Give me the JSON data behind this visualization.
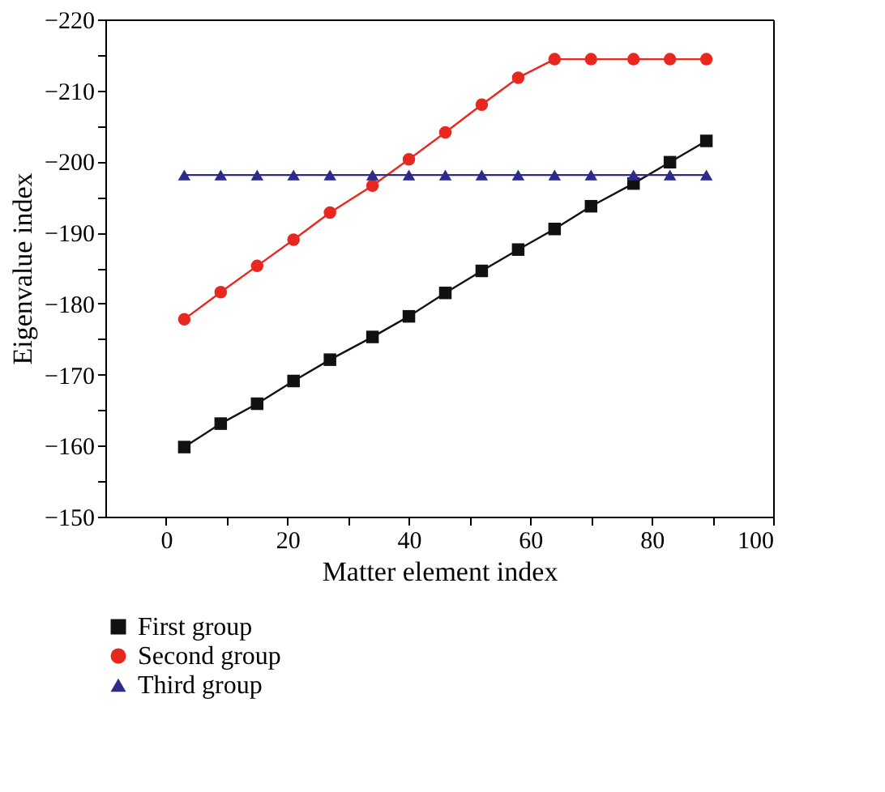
{
  "chart_data": {
    "type": "line",
    "xlabel": "Matter element index",
    "ylabel": "Eigenvalue index",
    "x": [
      3,
      9,
      15,
      21,
      27,
      34,
      40,
      46,
      52,
      58,
      64,
      70,
      77,
      83,
      89
    ],
    "series": [
      {
        "name": "First group",
        "color": "#111111",
        "marker": "square",
        "values": [
          -159.8,
          -163.1,
          -165.9,
          -169.1,
          -172.1,
          -175.3,
          -178.2,
          -181.5,
          -184.6,
          -187.6,
          -190.5,
          -193.7,
          -196.9,
          -199.9,
          -202.9
        ]
      },
      {
        "name": "Second group",
        "color": "#e8281e",
        "marker": "circle",
        "values": [
          -177.8,
          -181.6,
          -185.3,
          -189,
          -192.8,
          -196.6,
          -200.3,
          -204.1,
          -208,
          -211.8,
          -214.4,
          -214.4,
          -214.4,
          -214.4,
          -214.4
        ]
      },
      {
        "name": "Third group",
        "color": "#2e2a8c",
        "marker": "triangle",
        "values": [
          -198.1,
          -198.1,
          -198.1,
          -198.1,
          -198.1,
          -198.1,
          -198.1,
          -198.1,
          -198.1,
          -198.1,
          -198.1,
          -198.1,
          -198.1,
          -198.1,
          -198.1
        ]
      }
    ],
    "xlim": [
      -10,
      100
    ],
    "xticks": [
      0,
      {
        "value": 10,
        "label": null
      },
      20,
      {
        "value": 30,
        "label": null
      },
      40,
      {
        "value": 50,
        "label": null
      },
      60,
      {
        "value": 70,
        "label": null
      },
      80,
      {
        "value": 90,
        "label": null
      },
      100
    ],
    "ylim": [
      -150,
      -220
    ],
    "yticks": [
      -220,
      {
        "value": -215,
        "label": null
      },
      -210,
      {
        "value": -205,
        "label": null
      },
      -200,
      {
        "value": -195,
        "label": null
      },
      -190,
      {
        "value": -185,
        "label": null
      },
      -180,
      {
        "value": -175,
        "label": null
      },
      -170,
      {
        "value": -165,
        "label": null
      },
      -160,
      {
        "value": -155,
        "label": null
      },
      -150
    ],
    "grid": false,
    "legend": "bottom",
    "line_style": "solid"
  }
}
